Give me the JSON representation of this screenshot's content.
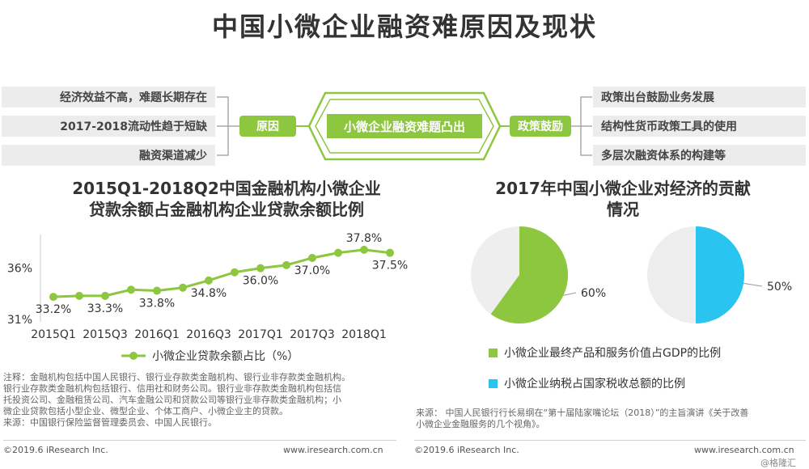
{
  "title": "中国小微企业融资难原因及现状",
  "diagram": {
    "center": "小微企业融资难题凸出",
    "left_label": "原因",
    "right_label": "政策鼓励",
    "left_items": [
      "经济效益不高，难题长期存在",
      "2017-2018流动性趋于短缺",
      "融资渠道减少"
    ],
    "right_items": [
      "政策出台鼓励业务发展",
      "结构性货币政策工具的使用",
      "多层次融资体系的构建等"
    ]
  },
  "line_chart_title_1": "2015Q1-2018Q2中国金融机构小微企业",
  "line_chart_title_2": "贷款余额占金融机构企业贷款余额比例",
  "pie_chart_title_1": "2017年中国小微企业对经济的贡献",
  "pie_chart_title_2": "情况",
  "colors": {
    "green": "#8dc63f",
    "cyan": "#29c4f0",
    "grey": "#eeeeee"
  },
  "chart_data": [
    {
      "type": "line",
      "x": [
        "2015Q1",
        "2015Q2",
        "2015Q3",
        "2015Q4",
        "2016Q1",
        "2016Q2",
        "2016Q3",
        "2016Q4",
        "2017Q1",
        "2017Q2",
        "2017Q3",
        "2017Q4",
        "2018Q1",
        "2018Q2"
      ],
      "x_tick_labels": [
        "2015Q1",
        "2015Q3",
        "2016Q1",
        "2016Q3",
        "2017Q1",
        "2017Q3",
        "2018Q1"
      ],
      "series": [
        {
          "name": "小微企业贷款余额占比（%）",
          "values": [
            33.2,
            33.3,
            33.3,
            33.9,
            33.8,
            34.1,
            34.8,
            35.6,
            36.0,
            36.3,
            37.0,
            37.5,
            37.8,
            37.5
          ]
        }
      ],
      "data_labels": [
        {
          "index": 0,
          "text": "33.2%"
        },
        {
          "index": 2,
          "text": "33.3%"
        },
        {
          "index": 4,
          "text": "33.8%"
        },
        {
          "index": 6,
          "text": "34.8%"
        },
        {
          "index": 8,
          "text": "36.0%"
        },
        {
          "index": 10,
          "text": "37.0%"
        },
        {
          "index": 12,
          "text": "37.8%"
        },
        {
          "index": 13,
          "text": "37.5%"
        }
      ],
      "y_tick_labels": [
        "31%",
        "36%"
      ],
      "ylim": [
        31,
        38.5
      ],
      "grid": false
    },
    {
      "type": "pie",
      "slices": [
        {
          "label": "小微企业最终产品和服务价值占GDP的比例",
          "value": 60,
          "text": "60%"
        }
      ]
    },
    {
      "type": "pie",
      "slices": [
        {
          "label": "小微企业纳税占国家税收总额的比例",
          "value": 50,
          "text": "50%"
        }
      ]
    }
  ],
  "notes_left": [
    "注释：金融机构包括中国人民银行、银行业存款类金融机构、银行业非存款类金融机构。",
    "银行业存款类金融机构包括银行、信用社和财务公司。银行业非存款类金融机构包括信",
    "托投资公司、金融租赁公司、汽车金融公司和贷款公司等银行业非存款类金融机构；小",
    "微企业贷款包括小型企业、微型企业、个体工商户、小微企业主的贷款。",
    "来源：中国银行保险监督管理委员会、中国人民银行。"
  ],
  "notes_right": [
    "来源：   中国人民银行行长易纲在“第十届陆家嘴论坛（2018）”的主旨演讲《关于改善",
    "小微企业金融服务的几个视角》。"
  ],
  "footer": {
    "left_copyright": "©2019.6 iResearch Inc.",
    "left_url": "www.iresearch.com.cn",
    "right_copyright": "©2019.6 iResearch Inc.",
    "right_url": "www.iresearch.com.cn",
    "watermark": "@格隆汇"
  }
}
